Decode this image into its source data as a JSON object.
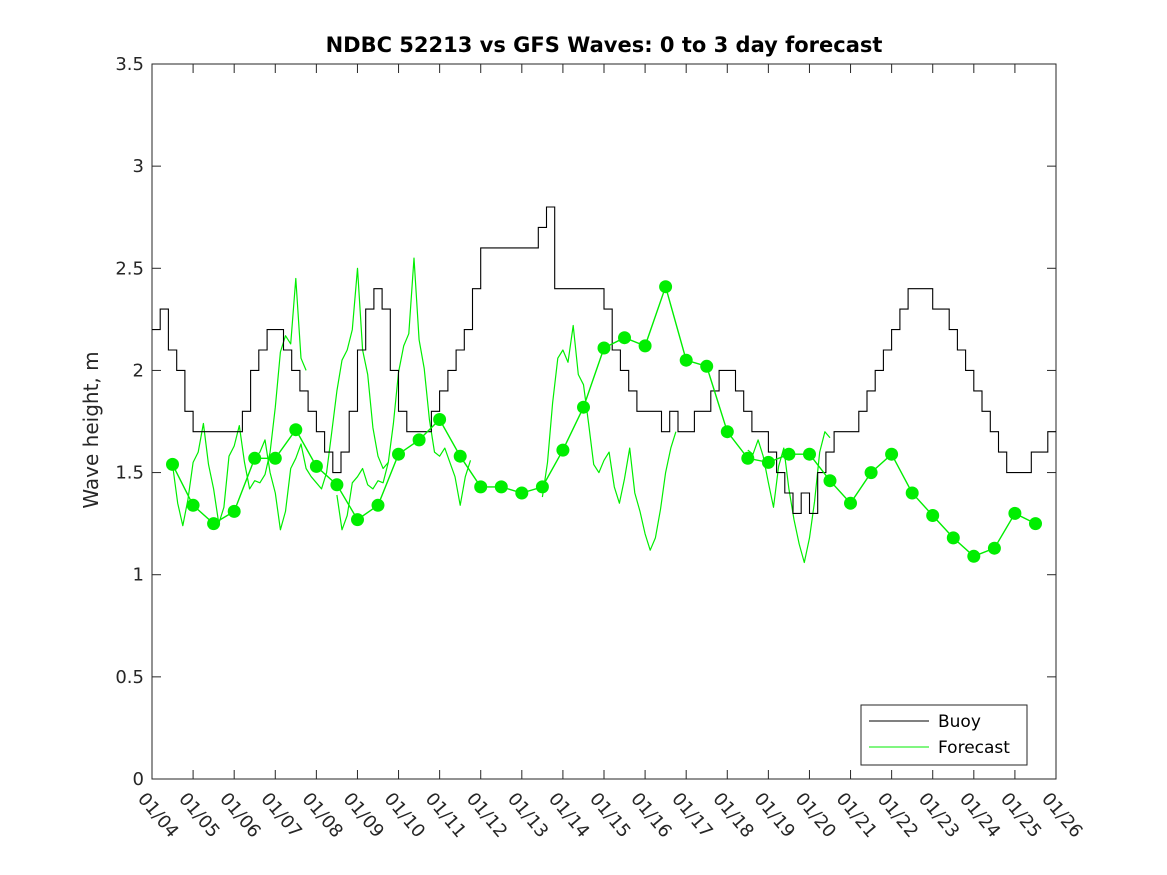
{
  "chart_data": {
    "type": "line",
    "title": "NDBC 52213 vs GFS Waves: 0 to 3 day forecast",
    "xlabel": "",
    "ylabel": "Wave height, m",
    "xlim": [
      0,
      22
    ],
    "ylim": [
      0,
      3.5
    ],
    "yticks": [
      0,
      0.5,
      1,
      1.5,
      2,
      2.5,
      3,
      3.5
    ],
    "ytick_labels": [
      "0",
      "0.5",
      "1",
      "1.5",
      "2",
      "2.5",
      "3",
      "3.5"
    ],
    "xtick_labels": [
      "01/04",
      "01/05",
      "01/06",
      "01/07",
      "01/08",
      "01/09",
      "01/10",
      "01/11",
      "01/12",
      "01/13",
      "01/14",
      "01/15",
      "01/16",
      "01/17",
      "01/18",
      "01/19",
      "01/20",
      "01/21",
      "01/22",
      "01/23",
      "01/24",
      "01/25",
      "01/26"
    ],
    "legend": {
      "position": "bottom-right",
      "entries": [
        "Buoy",
        "Forecast"
      ]
    },
    "colors": {
      "buoy": "#000000",
      "forecast": "#00ee00",
      "axes": "#262626"
    },
    "buoy": {
      "name": "Buoy",
      "x": [
        0,
        0.2,
        0.4,
        0.6,
        0.8,
        1,
        1.2,
        1.4,
        1.6,
        1.8,
        2,
        2.2,
        2.4,
        2.6,
        2.8,
        3,
        3.2,
        3.4,
        3.6,
        3.8,
        4,
        4.2,
        4.4,
        4.6,
        4.8,
        5,
        5.2,
        5.4,
        5.6,
        5.8,
        6,
        6.2,
        6.4,
        6.6,
        6.8,
        7,
        7.2,
        7.4,
        7.6,
        7.8,
        8,
        8.2,
        8.4,
        8.6,
        8.8,
        9,
        9.2,
        9.4,
        9.6,
        9.8,
        10,
        10.2,
        10.4,
        10.6,
        10.8,
        11,
        11.2,
        11.4,
        11.6,
        11.8,
        12,
        12.2,
        12.4,
        12.6,
        12.8,
        13,
        13.2,
        13.4,
        13.6,
        13.8,
        14,
        14.2,
        14.4,
        14.6,
        14.8,
        15,
        15.2,
        15.4,
        15.6,
        15.8,
        16,
        16.2,
        16.4,
        16.6,
        16.8,
        17,
        17.2,
        17.4,
        17.6,
        17.8,
        18,
        18.2,
        18.4,
        18.6,
        18.8,
        19,
        19.2,
        19.4,
        19.6,
        19.8,
        20,
        20.2,
        20.4,
        20.6,
        20.8,
        21,
        21.2,
        21.4,
        21.6,
        21.8,
        22
      ],
      "values": [
        2.2,
        2.3,
        2.1,
        2.0,
        1.8,
        1.7,
        1.7,
        1.7,
        1.7,
        1.7,
        1.7,
        1.8,
        2.0,
        2.1,
        2.2,
        2.2,
        2.1,
        2.0,
        1.9,
        1.8,
        1.7,
        1.6,
        1.5,
        1.6,
        1.8,
        2.1,
        2.3,
        2.4,
        2.3,
        2.0,
        1.8,
        1.7,
        1.7,
        1.7,
        1.8,
        1.9,
        2.0,
        2.1,
        2.2,
        2.4,
        2.6,
        2.6,
        2.6,
        2.6,
        2.6,
        2.6,
        2.6,
        2.7,
        2.8,
        2.4,
        2.4,
        2.4,
        2.4,
        2.4,
        2.4,
        2.3,
        2.1,
        2.0,
        1.9,
        1.8,
        1.8,
        1.8,
        1.7,
        1.8,
        1.7,
        1.7,
        1.8,
        1.8,
        1.9,
        2.0,
        2.0,
        1.9,
        1.8,
        1.7,
        1.7,
        1.6,
        1.5,
        1.4,
        1.3,
        1.4,
        1.3,
        1.5,
        1.6,
        1.7,
        1.7,
        1.7,
        1.8,
        1.9,
        2.0,
        2.1,
        2.2,
        2.3,
        2.4,
        2.4,
        2.4,
        2.3,
        2.3,
        2.2,
        2.1,
        2.0,
        1.9,
        1.8,
        1.7,
        1.6,
        1.5,
        1.5,
        1.5,
        1.6,
        1.6,
        1.7,
        1.7
      ]
    },
    "forecast_markers": {
      "name": "Forecast",
      "x": [
        0.5,
        1,
        1.5,
        2,
        2.5,
        3,
        3.5,
        4,
        4.5,
        5,
        5.5,
        6,
        6.5,
        7,
        7.5,
        8,
        8.5,
        9,
        9.5,
        10,
        10.5,
        11,
        11.5,
        12,
        12.5,
        13,
        13.5,
        14,
        14.5,
        15,
        15.5,
        16,
        16.5,
        17,
        17.5,
        18,
        18.5,
        19,
        19.5,
        20,
        20.5,
        21,
        21.5
      ],
      "values": [
        1.54,
        1.34,
        1.25,
        1.31,
        1.57,
        1.57,
        1.71,
        1.53,
        1.44,
        1.27,
        1.34,
        1.59,
        1.66,
        1.76,
        1.58,
        1.43,
        1.43,
        1.4,
        1.43,
        1.61,
        1.82,
        2.11,
        2.16,
        2.12,
        2.41,
        2.05,
        2.02,
        1.7,
        1.57,
        1.55,
        1.59,
        1.59,
        1.46,
        1.35,
        1.5,
        1.59,
        1.4,
        1.29,
        1.18,
        1.09,
        1.13,
        1.3,
        1.25
      ]
    },
    "forecast_runs": [
      {
        "name": "run-1",
        "start": 0.5,
        "values": [
          1.54,
          1.35,
          1.24,
          1.37,
          1.55,
          1.6,
          1.74,
          1.54,
          1.42,
          1.25,
          1.33,
          1.58,
          1.63,
          1.73,
          1.55,
          1.42,
          1.46,
          1.45,
          1.49,
          1.6,
          1.82,
          2.09,
          2.17,
          2.13,
          2.45,
          2.06,
          2.0
        ]
      },
      {
        "name": "run-2",
        "start": 2.5,
        "values": [
          1.57,
          1.6,
          1.66,
          1.5,
          1.4,
          1.22,
          1.31,
          1.52,
          1.57,
          1.64,
          1.52,
          1.48,
          1.45,
          1.42,
          1.5,
          1.7,
          1.9,
          2.05,
          2.1,
          2.2,
          2.5,
          2.1,
          1.98,
          1.72,
          1.58,
          1.52,
          1.55
        ]
      },
      {
        "name": "run-3",
        "start": 4.5,
        "values": [
          1.39,
          1.22,
          1.29,
          1.45,
          1.48,
          1.52,
          1.44,
          1.42,
          1.46,
          1.45,
          1.55,
          1.74,
          1.99,
          2.12,
          2.18,
          2.55,
          2.15,
          2.01,
          1.76,
          1.6,
          1.58,
          1.62,
          1.55,
          1.48,
          1.34,
          1.48,
          1.56
        ]
      },
      {
        "name": "run-4",
        "start": 9.5,
        "values": [
          1.38,
          1.55,
          1.84,
          2.06,
          2.1,
          2.04,
          2.22,
          1.98,
          1.93,
          1.74,
          1.54,
          1.5,
          1.56,
          1.6,
          1.43,
          1.35,
          1.47,
          1.62,
          1.4,
          1.31,
          1.2,
          1.12,
          1.18,
          1.32,
          1.5,
          1.62,
          1.7
        ]
      },
      {
        "name": "run-5",
        "start": 14.5,
        "values": [
          1.61,
          1.59,
          1.66,
          1.58,
          1.45,
          1.33,
          1.53,
          1.62,
          1.42,
          1.27,
          1.15,
          1.06,
          1.18,
          1.36,
          1.6,
          1.7,
          1.67
        ]
      }
    ]
  }
}
